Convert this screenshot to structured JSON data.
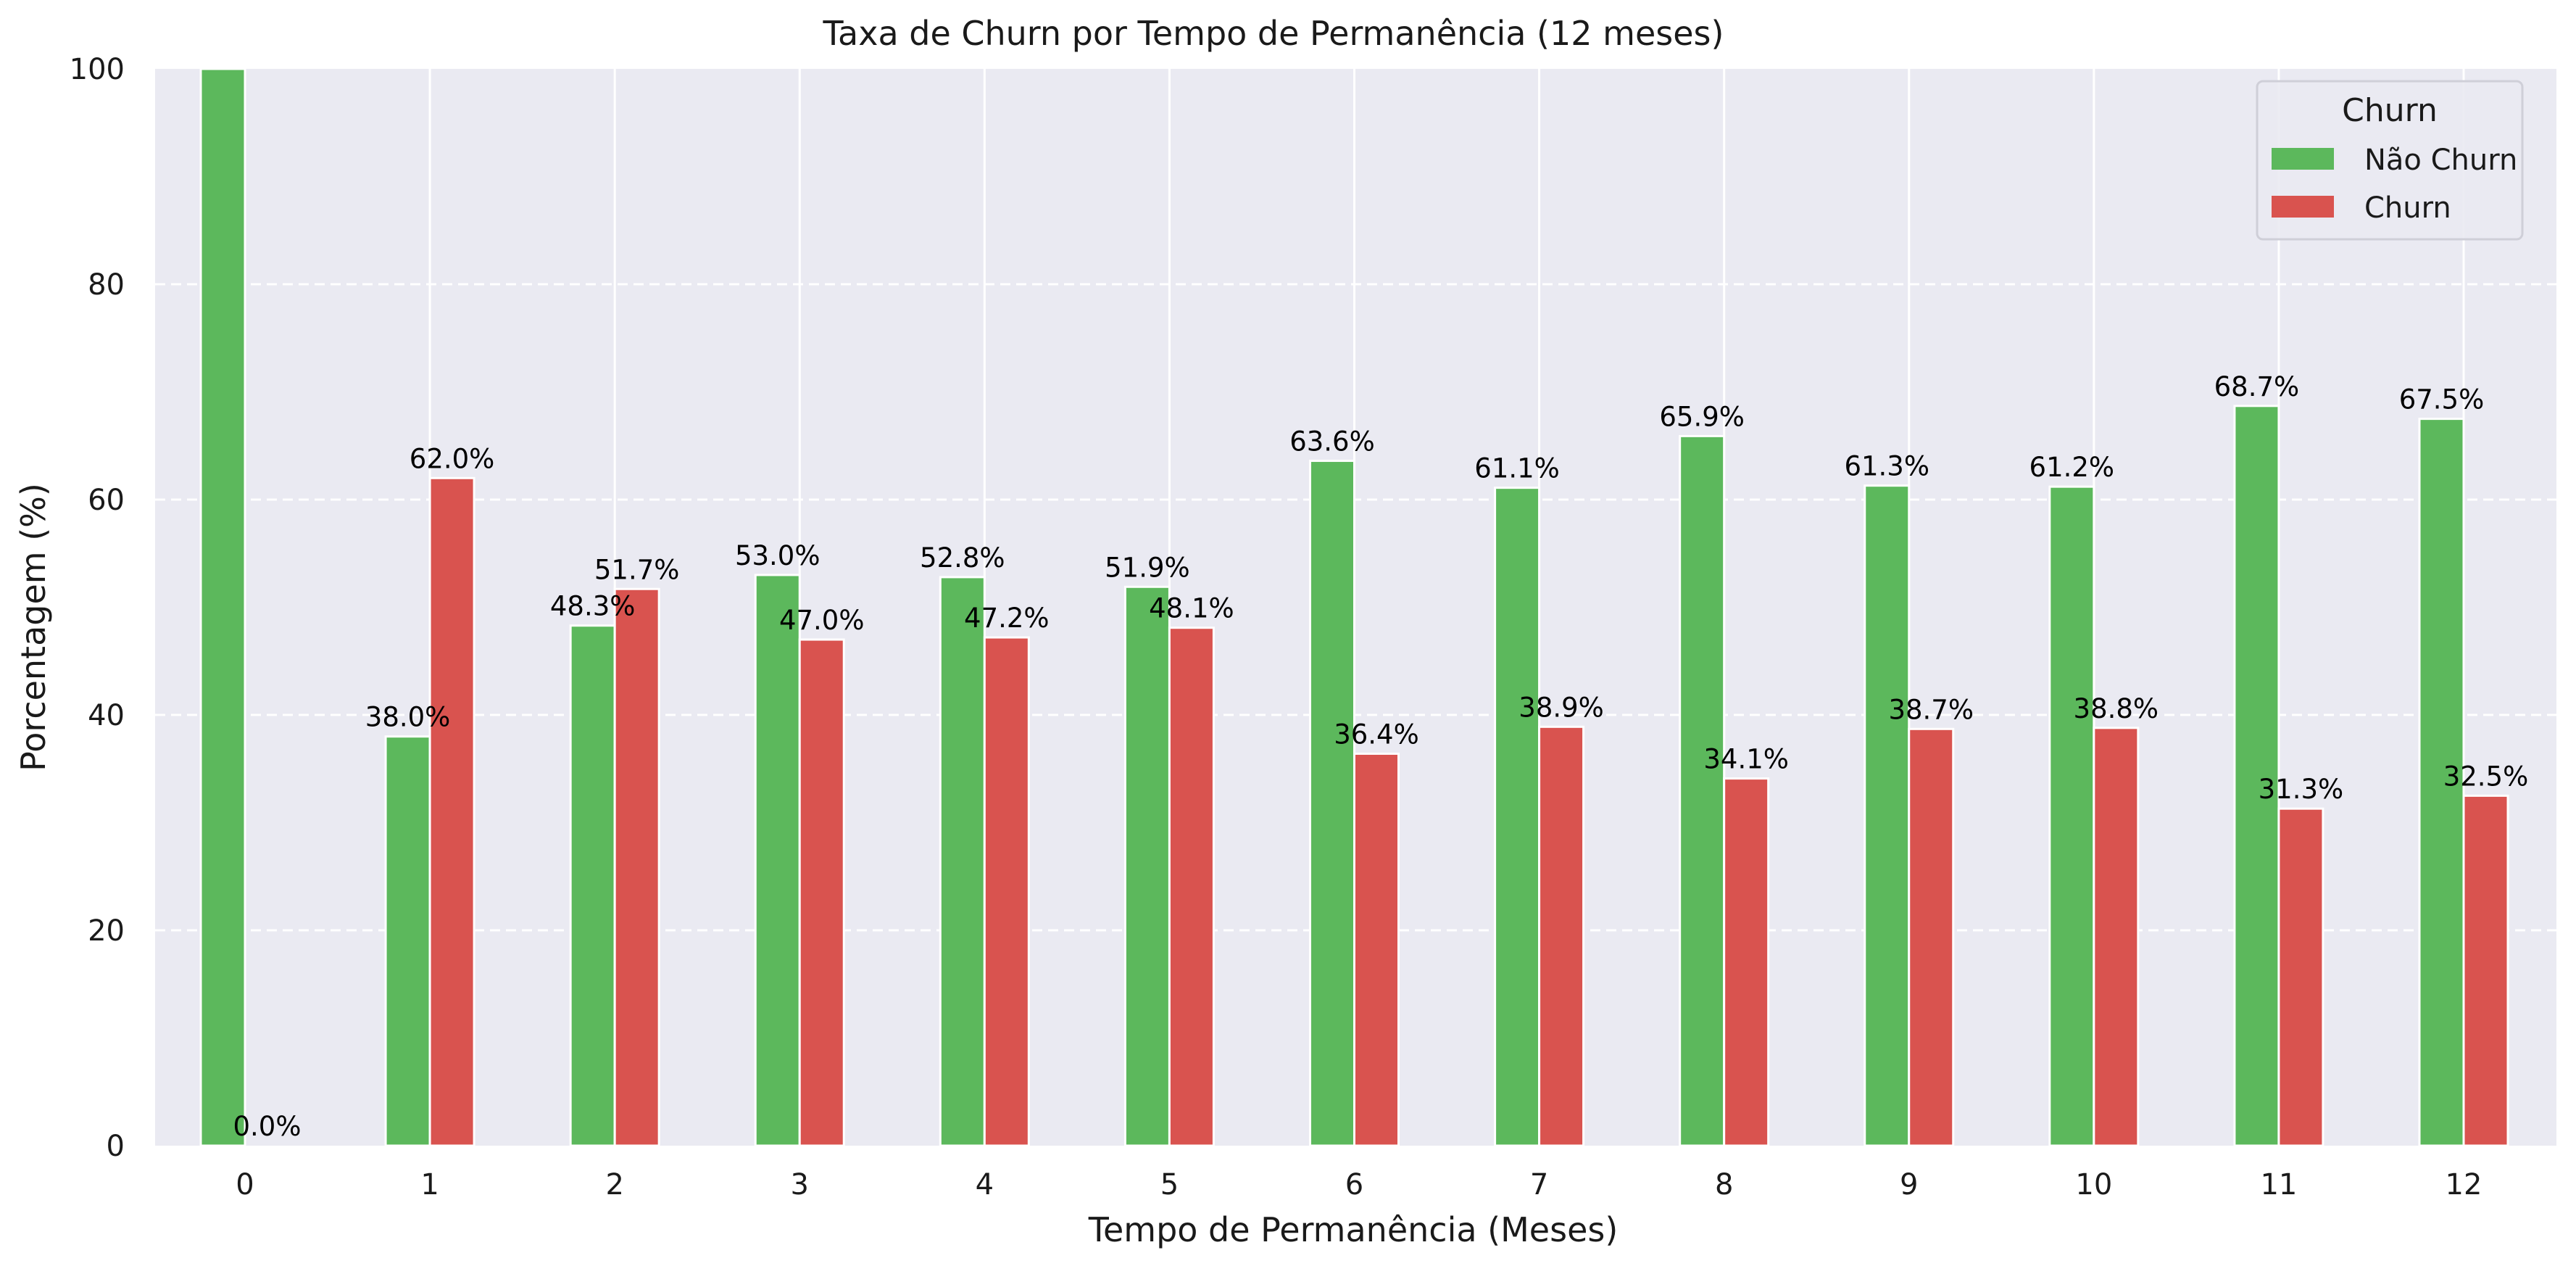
{
  "chart_data": {
    "type": "bar",
    "title": "Taxa de Churn por Tempo de Permanência (12 meses)",
    "xlabel": "Tempo de Permanência (Meses)",
    "ylabel": "Porcentagem (%)",
    "ylim": [
      0,
      100
    ],
    "yticks": [
      "0",
      "20",
      "40",
      "60",
      "80",
      "100"
    ],
    "categories": [
      "0",
      "1",
      "2",
      "3",
      "4",
      "5",
      "6",
      "7",
      "8",
      "9",
      "10",
      "11",
      "12"
    ],
    "series": [
      {
        "name": "Não Churn",
        "color": "#5cb85c",
        "values": [
          100.0,
          38.0,
          48.3,
          53.0,
          52.8,
          51.9,
          63.6,
          61.1,
          65.9,
          61.3,
          61.2,
          68.7,
          67.5
        ],
        "labels": [
          null,
          "38.0%",
          "48.3%",
          "53.0%",
          "52.8%",
          "51.9%",
          "63.6%",
          "61.1%",
          "65.9%",
          "61.3%",
          "61.2%",
          "68.7%",
          "67.5%"
        ]
      },
      {
        "name": "Churn",
        "color": "#d9534f",
        "values": [
          0.0,
          62.0,
          51.7,
          47.0,
          47.2,
          48.1,
          36.4,
          38.9,
          34.1,
          38.7,
          38.8,
          31.3,
          32.5
        ],
        "labels": [
          "0.0%",
          "62.0%",
          "51.7%",
          "47.0%",
          "47.2%",
          "48.1%",
          "36.4%",
          "38.9%",
          "34.1%",
          "38.7%",
          "38.8%",
          "31.3%",
          "32.5%"
        ]
      }
    ],
    "grid": true,
    "legend": {
      "title": "Churn",
      "placement": "top-right"
    },
    "background_color": "#eaeaf2"
  }
}
